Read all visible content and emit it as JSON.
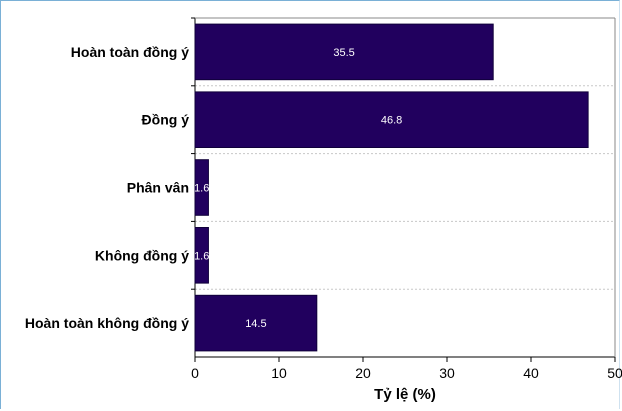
{
  "chart_data": {
    "type": "bar",
    "orientation": "horizontal",
    "categories": [
      "Hoàn toàn đồng ý",
      "Đồng ý",
      "Phân vân",
      "Không đồng ý",
      "Hoàn toàn không đồng ý"
    ],
    "values": [
      35.5,
      46.8,
      1.6,
      1.6,
      14.5
    ],
    "data_labels": [
      "35.5",
      "46.8",
      "1.6",
      "1.6",
      "14.5"
    ],
    "xlabel": "Tỷ lệ (%)",
    "ylabel": "",
    "xlim": [
      0,
      50
    ],
    "x_ticks": [
      "0",
      "10",
      "20",
      "30",
      "40",
      "50"
    ],
    "grid": "horizontal dotted lines between categories",
    "colors": {
      "bar": "#21005e",
      "bar_edge": "#10003a",
      "frame": "#7ab0d6"
    }
  }
}
